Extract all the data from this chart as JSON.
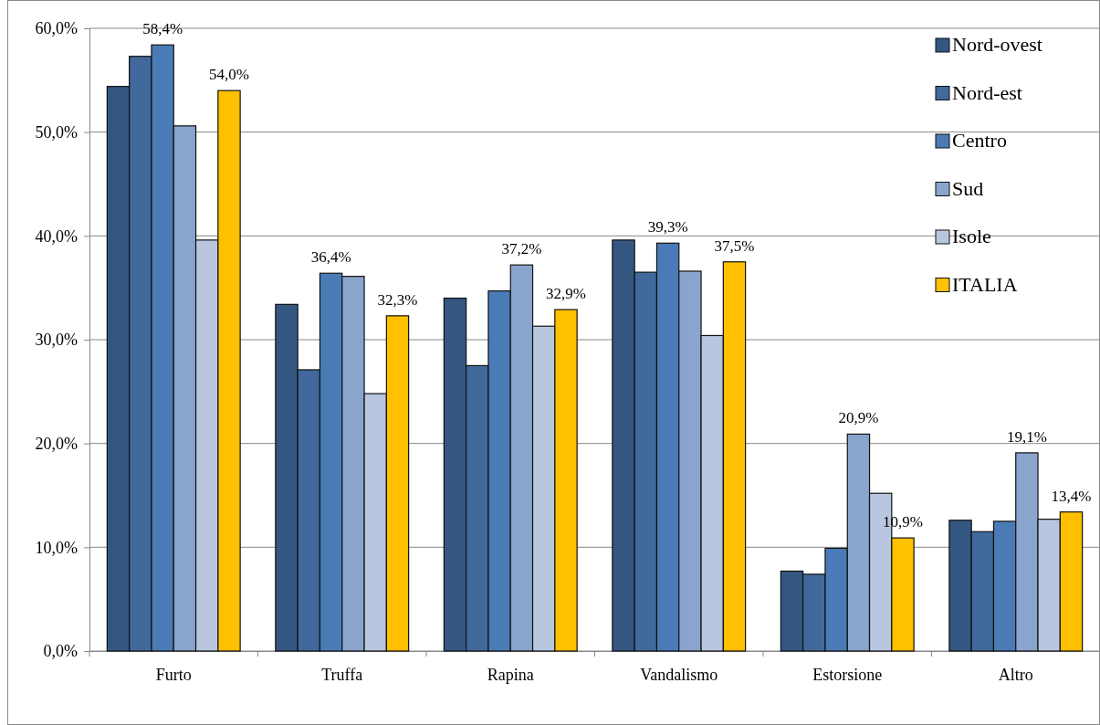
{
  "chart_data": {
    "type": "bar",
    "categories": [
      "Furto",
      "Truffa",
      "Rapina",
      "Vandalismo",
      "Estorsione",
      "Altro"
    ],
    "series": [
      {
        "name": "Nord-ovest",
        "color": "#345781",
        "values": [
          54.4,
          33.4,
          34.0,
          39.6,
          7.7,
          12.6
        ],
        "value_labels": [
          null,
          null,
          null,
          null,
          null,
          null
        ]
      },
      {
        "name": "Nord-est",
        "color": "#41699b",
        "values": [
          57.3,
          27.1,
          27.5,
          36.5,
          7.4,
          11.5
        ],
        "value_labels": [
          null,
          null,
          null,
          null,
          null,
          null
        ]
      },
      {
        "name": "Centro",
        "color": "#4a7bb7",
        "values": [
          58.4,
          36.4,
          34.7,
          39.3,
          9.9,
          12.5
        ],
        "value_labels": [
          "58,4%",
          "36,4%",
          null,
          "39,3%",
          null,
          null
        ]
      },
      {
        "name": "Sud",
        "color": "#8aa5cd",
        "values": [
          50.6,
          36.1,
          37.2,
          36.6,
          20.9,
          19.1
        ],
        "value_labels": [
          null,
          null,
          "37,2%",
          null,
          "20,9%",
          "19,1%"
        ]
      },
      {
        "name": "Isole",
        "color": "#b9c6df",
        "values": [
          39.6,
          24.8,
          31.3,
          30.4,
          15.2,
          12.7
        ],
        "value_labels": [
          null,
          null,
          null,
          null,
          null,
          null
        ]
      },
      {
        "name": "ITALIA",
        "color": "#ffc000",
        "values": [
          54.0,
          32.3,
          32.9,
          37.5,
          10.9,
          13.4
        ],
        "value_labels": [
          "54,0%",
          "32,3%",
          "32,9%",
          "37,5%",
          "10,9%",
          "13,4%"
        ]
      }
    ],
    "ylim": [
      0,
      60
    ],
    "yticks": [
      {
        "value": 0,
        "label": "0,0%"
      },
      {
        "value": 10,
        "label": "10,0%"
      },
      {
        "value": 20,
        "label": "20,0%"
      },
      {
        "value": 30,
        "label": "30,0%"
      },
      {
        "value": 40,
        "label": "40,0%"
      },
      {
        "value": 50,
        "label": "50,0%"
      },
      {
        "value": 60,
        "label": "60,0%"
      }
    ],
    "grid": "y",
    "legend": "top right"
  }
}
